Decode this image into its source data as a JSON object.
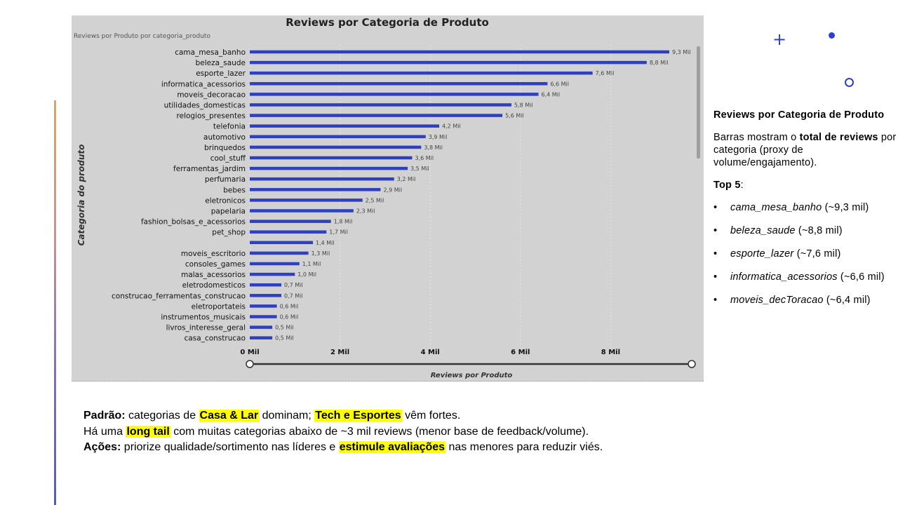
{
  "chart_data": {
    "type": "bar",
    "orientation": "horizontal",
    "title": "Reviews por Categoria de Produto",
    "subtitle": "Reviews por Produto por categoria_produto",
    "xlabel": "Reviews por Produto",
    "ylabel": "Categoria do produto",
    "xlim": [
      0,
      9.7
    ],
    "xticks": [
      0,
      2,
      4,
      6,
      8
    ],
    "xtick_labels": [
      "0 Mil",
      "2 Mil",
      "4 Mil",
      "6 Mil",
      "8 Mil"
    ],
    "bar_color": "#2e3fbf",
    "categories": [
      "cama_mesa_banho",
      "beleza_saude",
      "esporte_lazer",
      "informatica_acessorios",
      "moveis_decoracao",
      "utilidades_domesticas",
      "relogios_presentes",
      "telefonia",
      "automotivo",
      "brinquedos",
      "cool_stuff",
      "ferramentas_jardim",
      "perfumaria",
      "bebes",
      "eletronicos",
      "papelaria",
      "fashion_bolsas_e_acessorios",
      "pet_shop",
      "",
      "moveis_escritorio",
      "consoles_games",
      "malas_acessorios",
      "eletrodomesticos",
      "construcao_ferramentas_construcao",
      "eletroportateis",
      "instrumentos_musicais",
      "livros_interesse_geral",
      "casa_construcao"
    ],
    "values": [
      9.3,
      8.8,
      7.6,
      6.6,
      6.4,
      5.8,
      5.6,
      4.2,
      3.9,
      3.8,
      3.6,
      3.5,
      3.2,
      2.9,
      2.5,
      2.3,
      1.8,
      1.7,
      1.4,
      1.3,
      1.1,
      1.0,
      0.7,
      0.7,
      0.6,
      0.6,
      0.5,
      0.5
    ],
    "value_labels": [
      "9,3 Mil",
      "8,8 Mil",
      "7,6 Mil",
      "6,6 Mil",
      "6,4 Mil",
      "5,8 Mil",
      "5,6 Mil",
      "4,2 Mil",
      "3,9 Mil",
      "3,8 Mil",
      "3,6 Mil",
      "3,5 Mil",
      "3,2 Mil",
      "2,9 Mil",
      "2,5 Mil",
      "2,3 Mil",
      "1,8 Mil",
      "1,7 Mil",
      "1,4 Mil",
      "1,3 Mil",
      "1,1 Mil",
      "1,0 Mil",
      "0,7 Mil",
      "0,7 Mil",
      "0,6 Mil",
      "0,6 Mil",
      "0,5 Mil",
      "0,5 Mil"
    ],
    "grid": true
  },
  "side_panel": {
    "heading": "Reviews por Categoria de Produto",
    "desc_pre": "Barras mostram o ",
    "desc_bold": "total de reviews",
    "desc_post": " por categoria (proxy de volume/engajamento).",
    "top_label": "Top 5",
    "top_colon": ":",
    "top_items": [
      {
        "name": "cama_mesa_banho",
        "value": " (~9,3 mil)"
      },
      {
        "name": "beleza_saude",
        "value": " (~8,8 mil)"
      },
      {
        "name": "esporte_lazer",
        "value": " (~7,6 mil)"
      },
      {
        "name": "informatica_acessorios",
        "value": " (~6,6 mil)"
      },
      {
        "name": "moveis_decToracao",
        "value": " (~6,4 mil)"
      }
    ]
  },
  "bottom": {
    "l1_label": "Padrão:",
    "l1_a": " categorias de ",
    "l1_hl1": "Casa & Lar",
    "l1_b": " dominam; ",
    "l1_hl2": "Tech e Esportes",
    "l1_c": " vêm fortes.",
    "l2_a": "Há uma ",
    "l2_hl": "long tail",
    "l2_b": " com muitas categorias abaixo de ~3 mil reviews (menor base de feedback/volume).",
    "l3_label": "Ações:",
    "l3_a": " priorize qualidade/sortimento nas líderes e ",
    "l3_hl": "estimule avaliações",
    "l3_b": " nas menores para reduzir viés."
  },
  "colors": {
    "accent": "#2b3fd6",
    "highlight": "#ffff00",
    "panel_bg": "#d2d2d2"
  }
}
